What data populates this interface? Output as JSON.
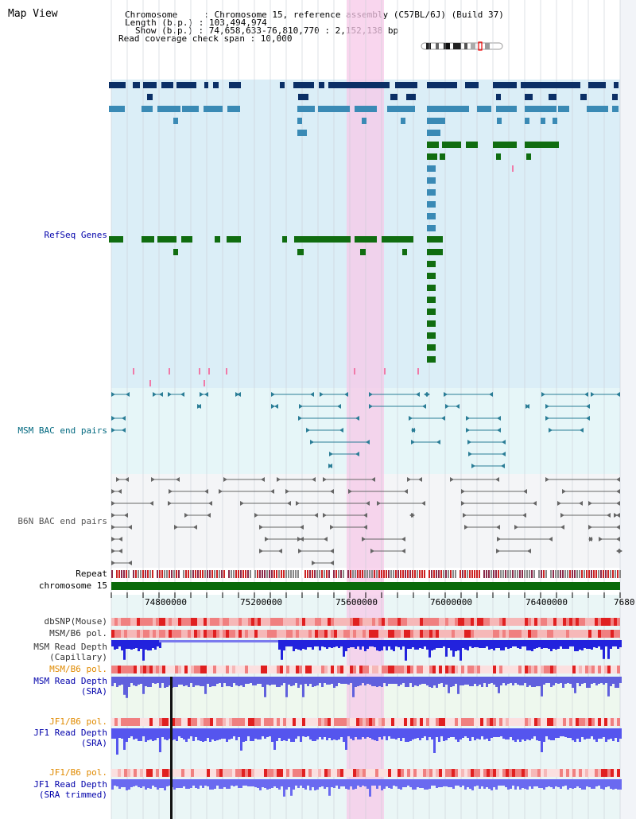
{
  "app": {
    "title": "Map View"
  },
  "header": {
    "chromosome": "Chromosome     : Chromosome 15, reference assembly (C57BL/6J) (Build 37)",
    "length": "Length (b.p.) : 103,494,974",
    "show": "Show (b.p.) : 74,658,633-76,810,770 : 2,152,138 bp",
    "coverage": "Read coverage check span : 10,000"
  },
  "tracks": {
    "refseq": "RefSeq Genes",
    "msm_bac": "MSM BAC end pairs",
    "b6n_bac": "B6N BAC end pairs",
    "repeat": "Repeat",
    "chromosome": "chromosome 15",
    "dbsnp": "dbSNP(Mouse)",
    "msm_b6_pol": "MSM/B6 pol.",
    "msm_depth_cap_1": "MSM Read Depth",
    "msm_depth_cap_2": "(Capillary)",
    "msm_b6_pol_2": "MSM/B6 pol.",
    "msm_depth_sra_1": "MSM Read Depth",
    "msm_depth_sra_2": "(SRA)",
    "jf1_b6_pol": "JF1/B6 pol.",
    "jf1_depth_sra_1": "JF1 Read Depth",
    "jf1_depth_sra_2": "(SRA)",
    "jf1_b6_pol_2": "JF1/B6 pol.",
    "jf1_depth_trim_1": "JF1 Read Depth",
    "jf1_depth_trim_2": "(SRA trimmed)"
  },
  "axis": {
    "ticks": [
      "74800000",
      "75200000",
      "75600000",
      "76000000",
      "76400000",
      "7680"
    ]
  },
  "colors": {
    "refseq_bg": "#dbeef7",
    "msm_bg": "#e6f6f8",
    "b6n_bg": "#f4f5f7",
    "highlight": "#f7c8e8",
    "dark_blue": "#0b2f66",
    "mid_blue": "#3a8ab5",
    "green": "#106d10",
    "teal": "#2a7d96",
    "gray": "#666666",
    "chrom_green": "#0a6a0a",
    "depth_blue": "#2222dd",
    "label_blue": "#0000aa",
    "label_orange": "#e08a00"
  }
}
